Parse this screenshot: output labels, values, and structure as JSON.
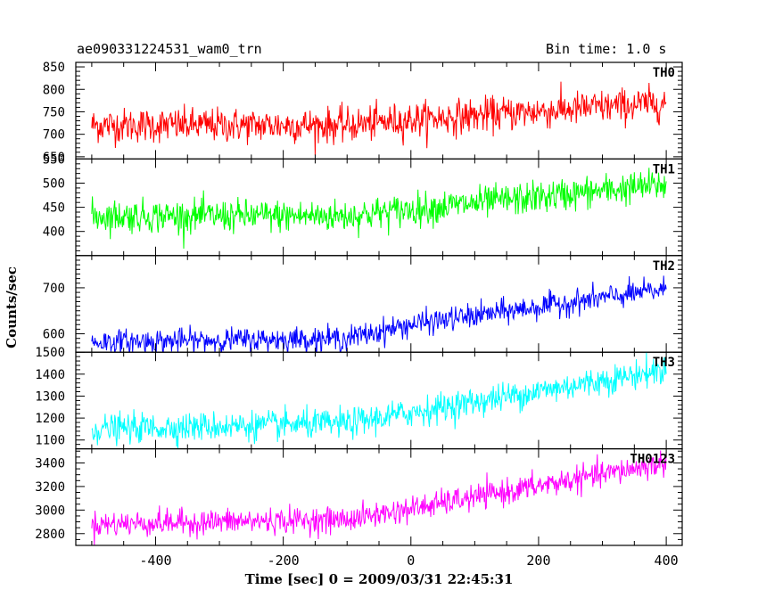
{
  "header": {
    "left_title": "ae090331224531_wam0_trn",
    "right_title": "Bin time: 1.0 s"
  },
  "chart_data": {
    "type": "line",
    "xlabel": "Time [sec] 0 = 2009/03/31 22:45:31",
    "ylabel": "Counts/sec",
    "xlim": [
      -525,
      425
    ],
    "x_ticks": [
      -400,
      -200,
      0,
      200,
      400
    ],
    "x_range": [
      -500,
      400
    ],
    "panels": [
      {
        "name": "TH0",
        "color": "#ff0000",
        "ylim": [
          645,
          860
        ],
        "yticks": [
          700,
          750,
          800,
          850
        ],
        "yticks_labeled": [
          650,
          700,
          750,
          800,
          850
        ],
        "baseline": 720,
        "trend_points": [
          [
            -500,
            720
          ],
          [
            -100,
            720
          ],
          [
            0,
            732
          ],
          [
            400,
            770
          ]
        ],
        "noise": 32
      },
      {
        "name": "TH1",
        "color": "#00ff00",
        "ylim": [
          350,
          550
        ],
        "yticks_labeled": [
          400,
          450,
          500,
          550
        ],
        "trend_points": [
          [
            -500,
            432
          ],
          [
            -100,
            432
          ],
          [
            0,
            445
          ],
          [
            400,
            497
          ]
        ],
        "noise": 28
      },
      {
        "name": "TH2",
        "color": "#0000ff",
        "ylim": [
          560,
          770
        ],
        "yticks_labeled": [
          600,
          700
        ],
        "trend_points": [
          [
            -500,
            582
          ],
          [
            -100,
            590
          ],
          [
            0,
            620
          ],
          [
            400,
            697
          ]
        ],
        "noise": 22
      },
      {
        "name": "TH3",
        "color": "#00ffff",
        "ylim": [
          1060,
          1500
        ],
        "yticks_labeled": [
          1100,
          1200,
          1300,
          1400,
          1500
        ],
        "trend_points": [
          [
            -500,
            1150
          ],
          [
            -100,
            1175
          ],
          [
            0,
            1225
          ],
          [
            400,
            1420
          ]
        ],
        "noise": 55
      },
      {
        "name": "TH0123",
        "color": "#ff00ff",
        "ylim": [
          2700,
          3520
        ],
        "yticks_labeled": [
          2800,
          3000,
          3200,
          3400
        ],
        "trend_points": [
          [
            -500,
            2880
          ],
          [
            -100,
            2920
          ],
          [
            0,
            3010
          ],
          [
            400,
            3400
          ]
        ],
        "noise": 90
      }
    ]
  }
}
